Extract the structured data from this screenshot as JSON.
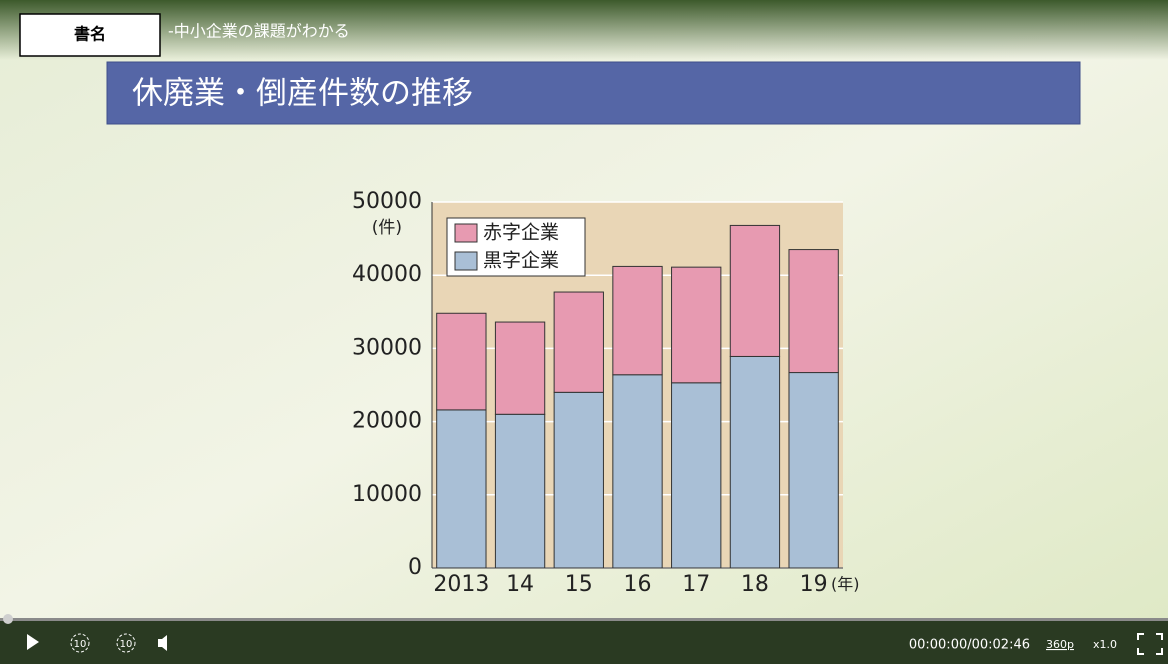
{
  "header": {
    "label": "書名",
    "title": "-中小企業の課題がわかる"
  },
  "slide_title": "休廃業・倒産件数の推移",
  "chart_data": {
    "type": "stacked-bar",
    "y_unit": "(件)",
    "x_unit": "(年)",
    "categories": [
      "2013",
      "14",
      "15",
      "16",
      "17",
      "18",
      "19"
    ],
    "series": [
      {
        "name": "黒字企業",
        "color": "#a9bfd6",
        "values": [
          21600,
          21000,
          24000,
          26400,
          25300,
          28900,
          26700
        ]
      },
      {
        "name": "赤字企業",
        "color": "#e79ab1",
        "values": [
          13200,
          12600,
          13700,
          14800,
          15800,
          17900,
          16800
        ]
      }
    ],
    "ylim": [
      0,
      50000
    ],
    "yticks": [
      0,
      10000,
      20000,
      30000,
      40000,
      50000
    ],
    "grid": true
  },
  "player": {
    "rewind": "10",
    "forward": "10",
    "time": "00:00:00/00:02:46",
    "quality": "360p",
    "speed": "x1.0"
  }
}
